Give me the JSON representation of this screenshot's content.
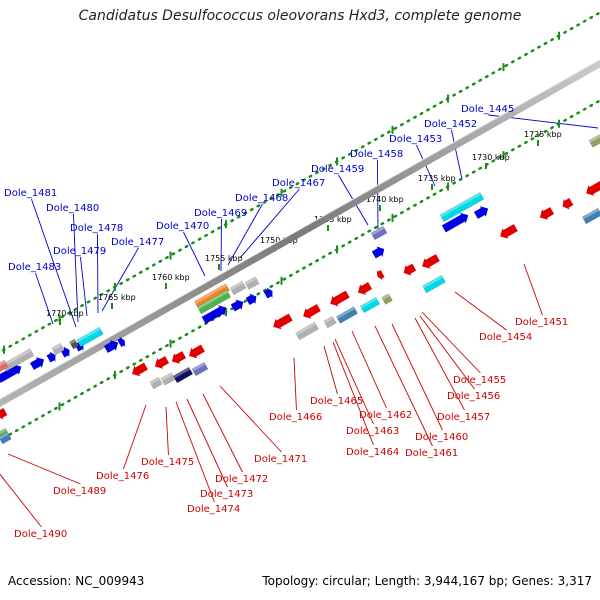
{
  "title": "Candidatus Desulfococcus oleovorans Hxd3, complete genome",
  "footer": {
    "accession": "Accession: NC_009943",
    "stats": "Topology: circular; Length: 3,944,167 bp; Genes: 3,317"
  },
  "colors": {
    "label_top": "#0000cc",
    "label_bottom": "#cc0000",
    "tick": "#1a8c1a",
    "backbone": "#808080",
    "forward_arrow": "#0000e0",
    "reverse_arrow": "#e00000",
    "cog_cyan": "#00d8e8",
    "cog_orange": "#f08020",
    "cog_green": "#50b050",
    "cog_gray": "#b0b0b0",
    "cog_steel": "#4080b0",
    "cog_navy": "#101060",
    "cog_purple": "#7070c0",
    "cog_olive": "#90a060"
  },
  "ruler": {
    "kbp_labels": [
      "1725 kbp",
      "1730 kbp",
      "1735 kbp",
      "1740 kbp",
      "1745 kbp",
      "1750 kbp",
      "1755 kbp",
      "1760 kbp",
      "1765 kbp",
      "1770 kbp"
    ]
  },
  "genes_top": [
    "Dole_1445",
    "Dole_1452",
    "Dole_1453",
    "Dole_1458",
    "Dole_1459",
    "Dole_1467",
    "Dole_1468",
    "Dole_1469",
    "Dole_1470",
    "Dole_1477",
    "Dole_1478",
    "Dole_1479",
    "Dole_1480",
    "Dole_1481",
    "Dole_1483"
  ],
  "genes_bottom": [
    "Dole_1451",
    "Dole_1454",
    "Dole_1455",
    "Dole_1456",
    "Dole_1457",
    "Dole_1460",
    "Dole_1461",
    "Dole_1462",
    "Dole_1463",
    "Dole_1464",
    "Dole_1465",
    "Dole_1466",
    "Dole_1471",
    "Dole_1472",
    "Dole_1473",
    "Dole_1474",
    "Dole_1475",
    "Dole_1476",
    "Dole_1489",
    "Dole_1490"
  ]
}
